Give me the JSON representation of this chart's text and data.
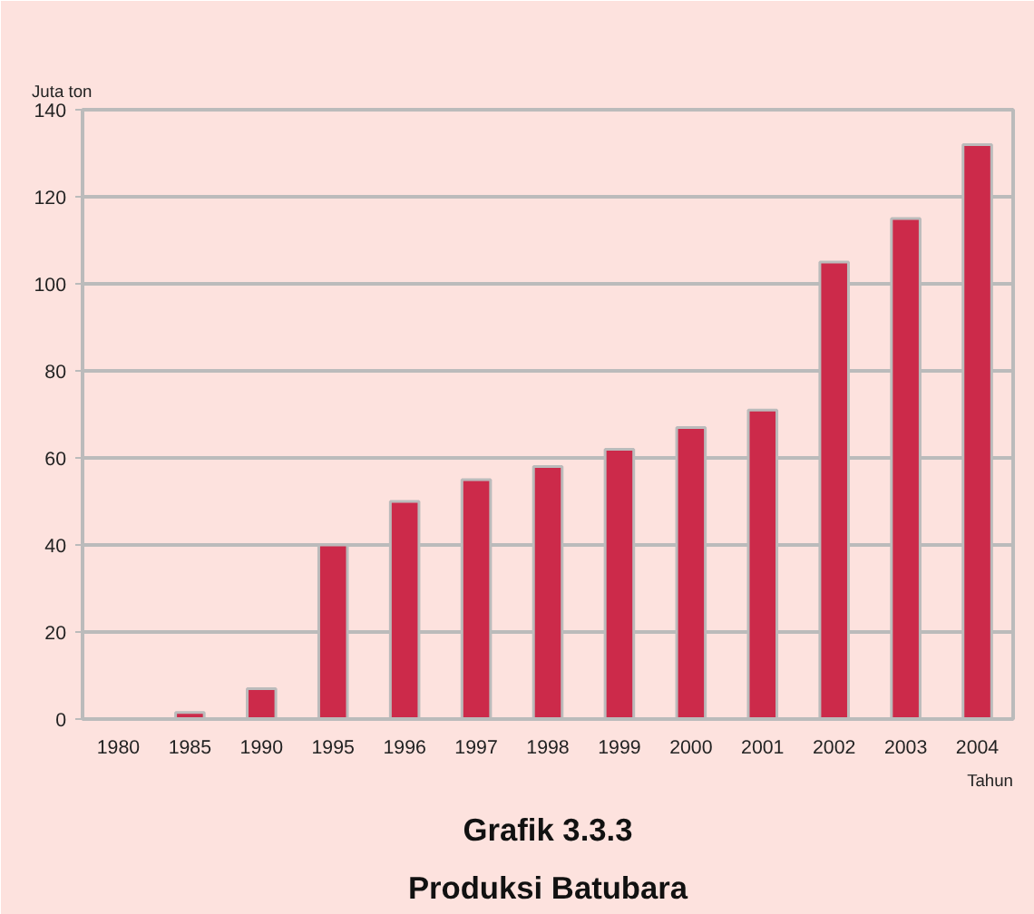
{
  "chart_data": {
    "type": "bar",
    "title": "Grafik 3.3.3",
    "subtitle": "Produksi Batubara",
    "ylabel": "Juta ton",
    "xlabel": "Tahun",
    "categories": [
      "1980",
      "1985",
      "1990",
      "1995",
      "1996",
      "1997",
      "1998",
      "1999",
      "2000",
      "2001",
      "2002",
      "2003",
      "2004"
    ],
    "values": [
      0,
      1.5,
      7,
      40,
      50,
      55,
      58,
      62,
      67,
      71,
      105,
      115,
      132
    ],
    "color": "#cc2a4a",
    "ylim": [
      0,
      140
    ],
    "yticks": [
      0,
      20,
      40,
      60,
      80,
      100,
      120,
      140
    ],
    "grid": "y"
  }
}
